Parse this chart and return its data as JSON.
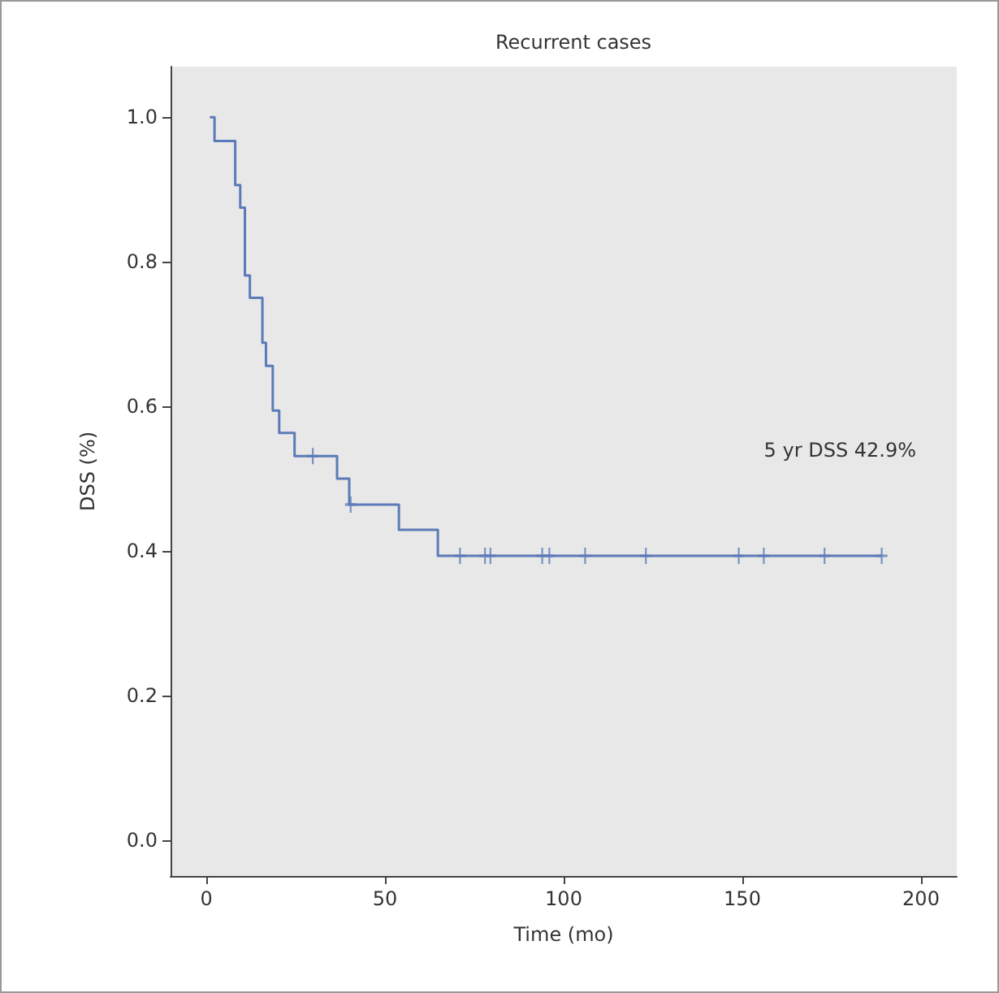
{
  "chart_data": {
    "type": "step",
    "title": "Recurrent cases",
    "xlabel": "Time (mo)",
    "ylabel": "DSS (%)",
    "annotations": [
      "5 yr DSS 42.9%"
    ],
    "series": [
      {
        "color": "#5b7bb8",
        "x": [
          1,
          2.3,
          8.1,
          9.5,
          10.8,
          12.2,
          15.7,
          16.7,
          18.6,
          20.4,
          24.7,
          36.6,
          40,
          53.9,
          64.8,
          189
        ],
        "values": [
          1,
          0.967,
          0.906,
          0.875,
          0.781,
          0.75,
          0.688,
          0.656,
          0.594,
          0.563,
          0.531,
          0.5,
          0.464,
          0.429,
          0.393,
          0.393
        ]
      },
      {
        "type": "scatter",
        "marker": "cross",
        "color": "#5b7bb8",
        "x": [
          29.8,
          40.4,
          71,
          78,
          79.5,
          94,
          96,
          106,
          123,
          149,
          156,
          173,
          189
        ],
        "values": [
          0.531,
          0.464,
          0.393,
          0.393,
          0.393,
          0.393,
          0.393,
          0.393,
          0.393,
          0.393,
          0.393,
          0.393,
          0.393
        ]
      }
    ],
    "xlim": [
      -10,
      210
    ],
    "xticks": [
      0,
      50,
      100,
      150,
      200
    ],
    "ylim": [
      -0.05,
      1.07
    ],
    "yticks": [
      {
        "value": 0,
        "label": "0.0"
      },
      {
        "value": 0.2,
        "label": "0.2"
      },
      {
        "value": 0.4,
        "label": "0.4"
      },
      {
        "value": 0.6,
        "label": "0.6"
      },
      {
        "value": 0.8,
        "label": "0.8"
      },
      {
        "value": 1,
        "label": "1.0"
      }
    ],
    "marker": "none"
  }
}
